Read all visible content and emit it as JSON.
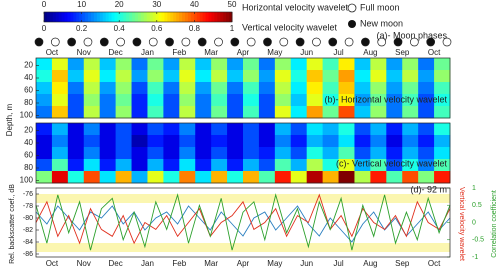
{
  "months": [
    "Oct",
    "Nov",
    "Dec",
    "Jan",
    "Feb",
    "Mar",
    "Apr",
    "May",
    "Jun",
    "Jul",
    "Aug",
    "Sep",
    "Oct"
  ],
  "legend": {
    "full": "Full moon",
    "new": "New moon"
  },
  "chart_data": [
    {
      "type": "moon",
      "label": "(a)- Moon phases",
      "phases": [
        "new",
        "full",
        "new",
        "full",
        "new",
        "full",
        "new",
        "full",
        "new",
        "full",
        "new",
        "full",
        "new",
        "full",
        "new",
        "full",
        "new",
        "full",
        "new",
        "full",
        "new",
        "full",
        "new",
        "full",
        "new",
        "full"
      ]
    },
    {
      "type": "heatmap",
      "label": "(b)- Horizontal velocity wavelet",
      "ylabel": "Depth, m",
      "colorbar_label": "Horizontal velocity wavelet",
      "zlim": [
        0,
        50
      ],
      "zticks": [
        0,
        10,
        20,
        30,
        40,
        50
      ],
      "ylim": [
        8,
        104
      ],
      "yticks": [
        20,
        40,
        60,
        80,
        100
      ],
      "values": [
        [
          18,
          30,
          14,
          28,
          16,
          26,
          12,
          24,
          14,
          28,
          16,
          26,
          14,
          24,
          12,
          26,
          18,
          30,
          22,
          32,
          16,
          28,
          14,
          26,
          12,
          24
        ],
        [
          20,
          34,
          16,
          30,
          18,
          28,
          14,
          26,
          16,
          30,
          18,
          28,
          16,
          26,
          14,
          30,
          20,
          34,
          24,
          36,
          18,
          30,
          16,
          28,
          14,
          26
        ],
        [
          16,
          32,
          12,
          28,
          14,
          26,
          10,
          22,
          12,
          28,
          14,
          24,
          12,
          22,
          12,
          28,
          18,
          32,
          22,
          34,
          16,
          26,
          14,
          24,
          12,
          22
        ],
        [
          14,
          30,
          10,
          26,
          12,
          24,
          8,
          20,
          10,
          26,
          12,
          22,
          10,
          20,
          10,
          26,
          16,
          30,
          20,
          32,
          14,
          24,
          12,
          22,
          10,
          20
        ],
        [
          12,
          34,
          10,
          28,
          12,
          26,
          8,
          22,
          10,
          28,
          12,
          24,
          10,
          22,
          10,
          30,
          18,
          36,
          24,
          40,
          16,
          26,
          12,
          24,
          10,
          22
        ]
      ]
    },
    {
      "type": "heatmap",
      "label": "(c)- Vertical velocity wavelet",
      "colorbar_label": "Vertical velocity wavelet",
      "zlim": [
        0,
        1
      ],
      "zticks": [
        0,
        0.2,
        0.4,
        0.6,
        0.8,
        1
      ],
      "ylim": [
        8,
        104
      ],
      "yticks": [
        20,
        40,
        60,
        80,
        100
      ],
      "values": [
        [
          0.15,
          0.3,
          0.1,
          0.25,
          0.1,
          0.2,
          0.1,
          0.2,
          0.15,
          0.25,
          0.1,
          0.2,
          0.1,
          0.2,
          0.1,
          0.3,
          0.2,
          0.35,
          0.3,
          0.4,
          0.2,
          0.3,
          0.15,
          0.3,
          0.2,
          0.4
        ],
        [
          0.1,
          0.25,
          0.1,
          0.2,
          0.1,
          0.2,
          0.05,
          0.15,
          0.1,
          0.2,
          0.1,
          0.15,
          0.1,
          0.2,
          0.1,
          0.25,
          0.15,
          0.3,
          0.25,
          0.35,
          0.15,
          0.25,
          0.1,
          0.25,
          0.15,
          0.3
        ],
        [
          0.1,
          0.3,
          0.1,
          0.25,
          0.1,
          0.2,
          0.1,
          0.2,
          0.1,
          0.25,
          0.1,
          0.2,
          0.1,
          0.2,
          0.15,
          0.3,
          0.2,
          0.4,
          0.3,
          0.45,
          0.2,
          0.3,
          0.15,
          0.3,
          0.2,
          0.35
        ],
        [
          0.2,
          0.45,
          0.15,
          0.35,
          0.15,
          0.3,
          0.1,
          0.3,
          0.15,
          0.35,
          0.15,
          0.3,
          0.15,
          0.3,
          0.2,
          0.45,
          0.3,
          0.55,
          0.4,
          0.6,
          0.3,
          0.45,
          0.2,
          0.4,
          0.25,
          0.45
        ],
        [
          0.5,
          0.9,
          0.4,
          0.8,
          0.35,
          0.7,
          0.3,
          0.6,
          0.4,
          0.75,
          0.35,
          0.7,
          0.4,
          0.7,
          0.45,
          0.85,
          0.6,
          0.95,
          0.7,
          1,
          0.55,
          0.85,
          0.45,
          0.8,
          0.5,
          0.85
        ]
      ]
    },
    {
      "type": "line",
      "label": "(d)- 92 m",
      "ylabel": "Rel. backscatter coef., dB",
      "ylim": [
        -86.5,
        -75
      ],
      "yticks": [
        -76,
        -78,
        -80,
        -82,
        -84,
        -86
      ],
      "y2label": "Vertical velocity wavelet",
      "y2lim": [
        0,
        1
      ],
      "y3label": "Correlation coefficient",
      "y3lim": [
        -1,
        1
      ],
      "y3ticks": [
        1,
        0.5,
        0,
        -0.5,
        -1
      ],
      "series": [
        {
          "color": "#2a7fc0",
          "axis": "y",
          "values": [
            -79,
            -81,
            -78,
            -80,
            -82,
            -79,
            -80,
            -78,
            -81,
            -79,
            -82,
            -80,
            -79,
            -81,
            -78,
            -80,
            -82,
            -79,
            -81,
            -83,
            -80,
            -79,
            -82,
            -80,
            -78,
            -81,
            -83,
            -80,
            -82,
            -84,
            -81,
            -79,
            -82,
            -80,
            -83,
            -81,
            -79,
            -82,
            -80
          ]
        },
        {
          "color": "#e0301e",
          "axis": "y2",
          "values": [
            0.5,
            0.8,
            0.3,
            0.6,
            0.2,
            0.7,
            0.4,
            0.3,
            0.6,
            0.2,
            0.5,
            0.4,
            0.6,
            0.3,
            0.5,
            0.7,
            0.3,
            0.5,
            0.6,
            0.8,
            0.4,
            0.5,
            0.7,
            0.3,
            0.6,
            0.5,
            0.9,
            0.4,
            0.6,
            0.3,
            0.7,
            0.5,
            0.4,
            0.6,
            0.3,
            0.8,
            0.5,
            0.4,
            0.7
          ]
        },
        {
          "color": "#2ca02c",
          "axis": "y3",
          "values": [
            0.5,
            -0.6,
            0.8,
            -0.3,
            0.6,
            -0.8,
            0.4,
            0.7,
            -0.5,
            0.3,
            -0.7,
            0.6,
            -0.2,
            0.8,
            -0.6,
            0.5,
            -0.4,
            0.7,
            -0.8,
            0.3,
            0.6,
            -0.5,
            0.8,
            -0.3,
            0.4,
            -0.7,
            0.6,
            -0.2,
            0.7,
            -0.8,
            0.5,
            -0.4,
            0.8,
            -0.6,
            0.3,
            -0.5,
            0.7,
            -0.3,
            0.5
          ]
        }
      ]
    }
  ]
}
